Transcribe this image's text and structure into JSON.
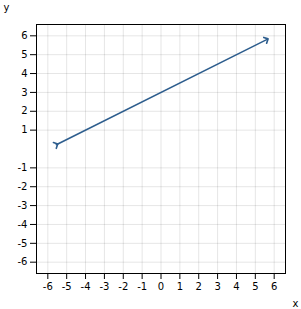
{
  "chart_data": {
    "type": "line",
    "x": [
      -5.55,
      5.6
    ],
    "values": [
      0.225,
      5.8
    ],
    "color": "#2e5e8e",
    "marker": "arrow",
    "xlabel": "x",
    "ylabel": "y",
    "xlim": [
      -6.6,
      6.6
    ],
    "ylim": [
      -6.6,
      6.6
    ],
    "xticks": [
      -6,
      -5,
      -4,
      -3,
      -2,
      -1,
      0,
      1,
      2,
      3,
      4,
      5,
      6
    ],
    "yticks": [
      -6,
      -5,
      -4,
      -3,
      -2,
      -1,
      1,
      2,
      3,
      4,
      5,
      6
    ],
    "grid": true
  }
}
